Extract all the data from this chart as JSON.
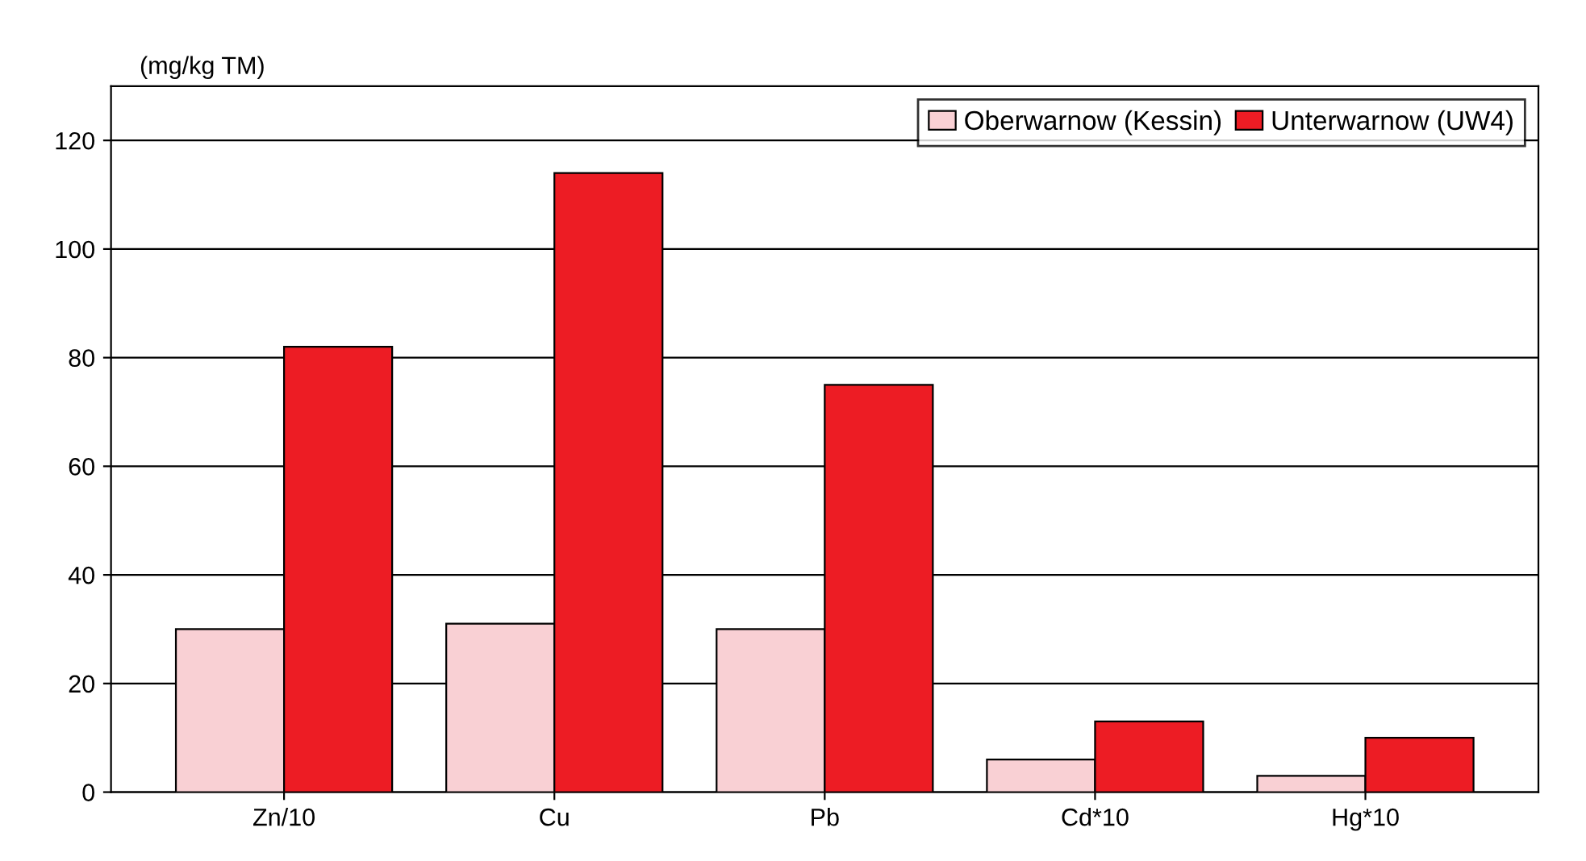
{
  "chart_data": {
    "type": "bar",
    "ylabel": "(mg/kg TM)",
    "categories": [
      "Zn/10",
      "Cu",
      "Pb",
      "Cd*10",
      "Hg*10"
    ],
    "series": [
      {
        "name": "Oberwarnow (Kessin)",
        "color": "#f9d0d4",
        "values": [
          30,
          31,
          30,
          6,
          3
        ]
      },
      {
        "name": "Unterwarnow (UW4)",
        "color": "#ed1c24",
        "values": [
          82,
          114,
          75,
          13,
          10
        ]
      }
    ],
    "ylim": [
      0,
      130
    ],
    "yticks": [
      0,
      20,
      40,
      60,
      80,
      100,
      120
    ],
    "grid": "y",
    "legend": "top right"
  }
}
